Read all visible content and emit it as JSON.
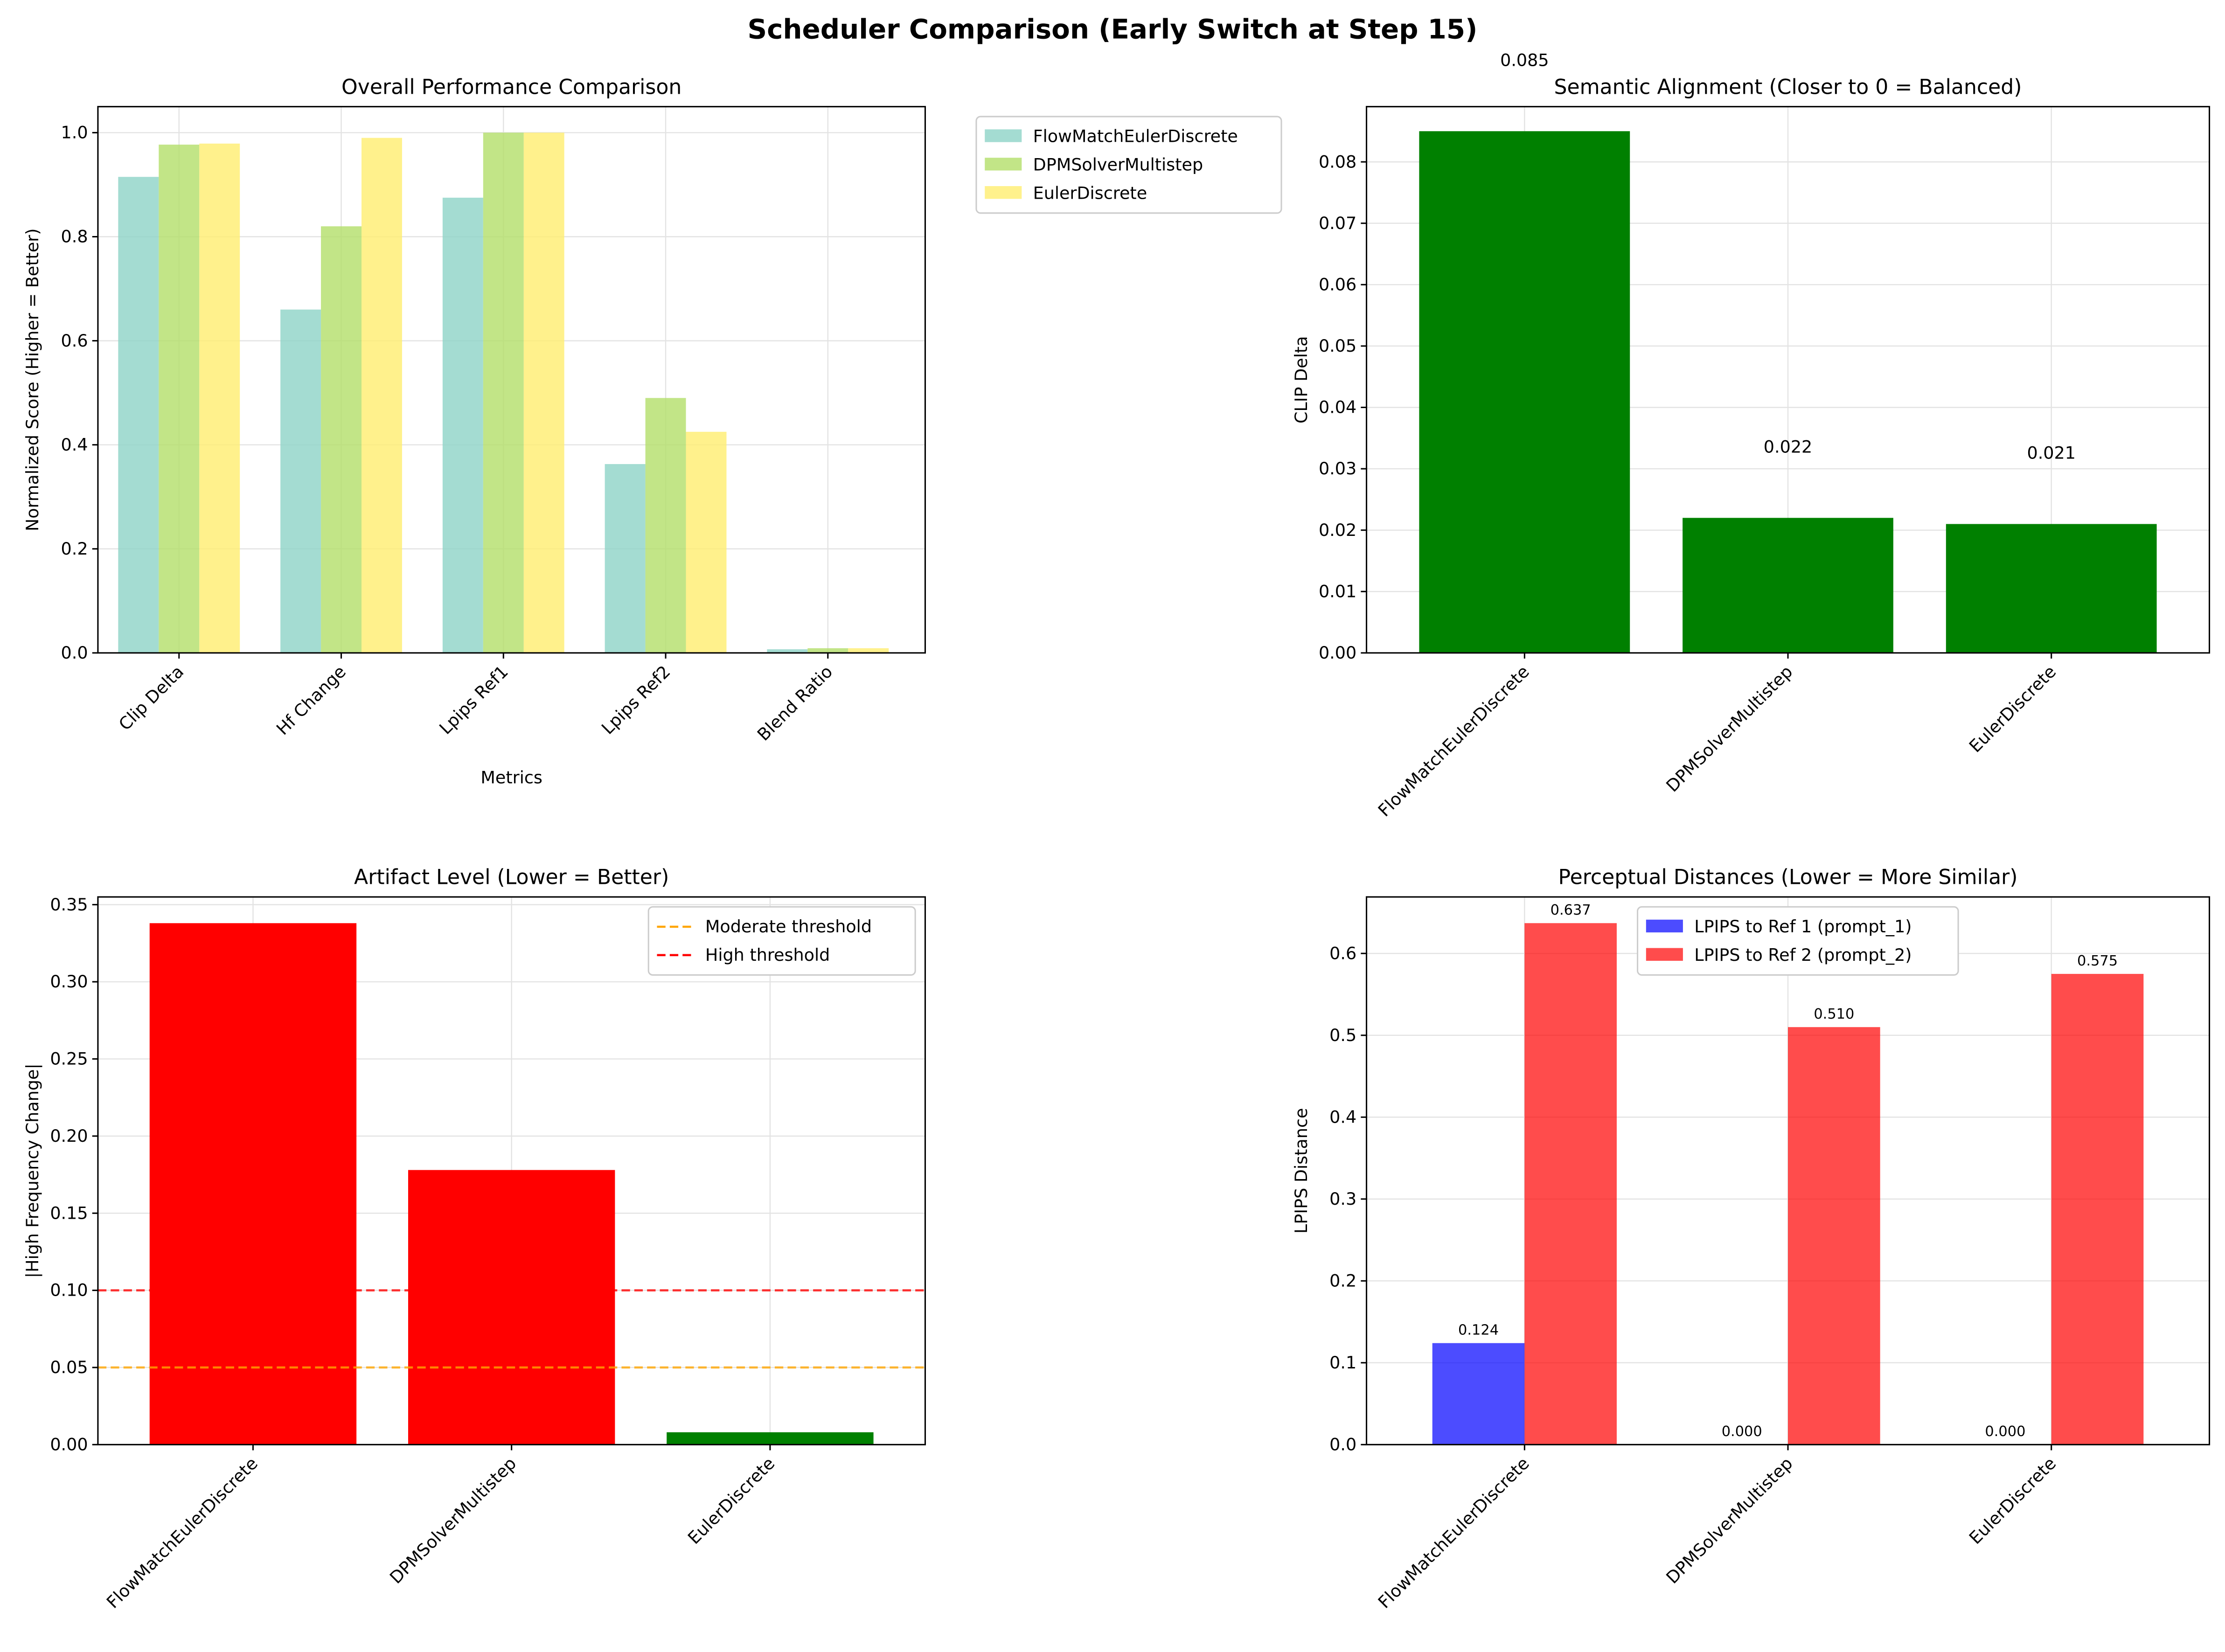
{
  "title": "Scheduler Comparison (Early Switch at Step 15)",
  "chart_data": [
    {
      "type": "bar",
      "title": "Overall Performance Comparison",
      "xlabel": "Metrics",
      "ylabel": "Normalized Score (Higher = Better)",
      "ylim": [
        0,
        1.05
      ],
      "yticks": [
        "0.0",
        "0.2",
        "0.4",
        "0.6",
        "0.8",
        "1.0"
      ],
      "categories": [
        "Clip Delta",
        "Hf Change",
        "Lpips Ref1",
        "Lpips Ref2",
        "Blend Ratio"
      ],
      "series": [
        {
          "name": "FlowMatchEulerDiscrete",
          "color": "#8dd3c7",
          "values": [
            0.915,
            0.66,
            0.875,
            0.363,
            0.007
          ]
        },
        {
          "name": "DPMSolverMultistep",
          "color": "#b3de69",
          "values": [
            0.977,
            0.82,
            1.0,
            0.49,
            0.009
          ]
        },
        {
          "name": "EulerDiscrete",
          "color": "#ffed6f",
          "values": [
            0.979,
            0.99,
            1.0,
            0.425,
            0.009
          ]
        }
      ],
      "legend": "outside-right"
    },
    {
      "type": "bar",
      "title": "Semantic Alignment (Closer to 0 = Balanced)",
      "xlabel": "",
      "ylabel": "CLIP Delta",
      "ylim": [
        0,
        0.089
      ],
      "yticks": [
        "0.00",
        "0.01",
        "0.02",
        "0.03",
        "0.04",
        "0.05",
        "0.06",
        "0.07",
        "0.08"
      ],
      "categories": [
        "FlowMatchEulerDiscrete",
        "DPMSolverMultistep",
        "EulerDiscrete"
      ],
      "values": [
        0.085,
        0.022,
        0.021
      ],
      "labels": [
        "0.085",
        "0.022",
        "0.021"
      ],
      "colors": [
        "#008000",
        "#008000",
        "#008000"
      ]
    },
    {
      "type": "bar",
      "title": "Artifact Level (Lower = Better)",
      "xlabel": "",
      "ylabel": "|High Frequency Change|",
      "ylim": [
        0,
        0.355
      ],
      "yticks": [
        "0.00",
        "0.05",
        "0.10",
        "0.15",
        "0.20",
        "0.25",
        "0.30",
        "0.35"
      ],
      "categories": [
        "FlowMatchEulerDiscrete",
        "DPMSolverMultistep",
        "EulerDiscrete"
      ],
      "values": [
        0.338,
        0.178,
        0.008
      ],
      "colors": [
        "#ff0000",
        "#ff0000",
        "#008000"
      ],
      "hlines": [
        {
          "name": "Moderate threshold",
          "value": 0.05,
          "color": "#ffa500"
        },
        {
          "name": "High threshold",
          "value": 0.1,
          "color": "#ff0000"
        }
      ],
      "legend": "top-right"
    },
    {
      "type": "bar",
      "title": "Perceptual Distances (Lower = More Similar)",
      "xlabel": "",
      "ylabel": "LPIPS Distance",
      "ylim": [
        0,
        0.669
      ],
      "yticks": [
        "0.0",
        "0.1",
        "0.2",
        "0.3",
        "0.4",
        "0.5",
        "0.6"
      ],
      "categories": [
        "FlowMatchEulerDiscrete",
        "DPMSolverMultistep",
        "EulerDiscrete"
      ],
      "series": [
        {
          "name": "LPIPS to Ref 1 (prompt_1)",
          "color": "#0000ff",
          "values": [
            0.124,
            0.0,
            0.0
          ],
          "labels": [
            "0.124",
            "0.000",
            "0.000"
          ]
        },
        {
          "name": "LPIPS to Ref 2 (prompt_2)",
          "color": "#ff0000",
          "values": [
            0.637,
            0.51,
            0.575
          ],
          "labels": [
            "0.637",
            "0.510",
            "0.575"
          ]
        }
      ],
      "legend": "top-center"
    }
  ]
}
